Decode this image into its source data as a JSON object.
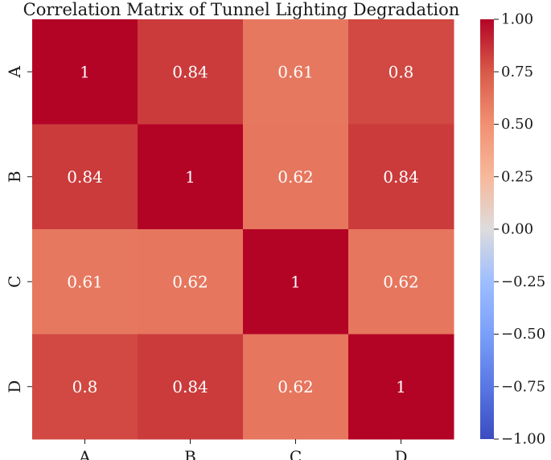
{
  "chart_data": {
    "type": "heatmap",
    "title": "Correlation Matrix of Tunnel Lighting Degradation",
    "xlabel": "",
    "ylabel": "",
    "row_labels": [
      "A",
      "B",
      "C",
      "D"
    ],
    "col_labels": [
      "A",
      "B",
      "C",
      "D"
    ],
    "values": [
      [
        1,
        0.84,
        0.61,
        0.8
      ],
      [
        0.84,
        1,
        0.62,
        0.84
      ],
      [
        0.61,
        0.62,
        1,
        0.62
      ],
      [
        0.8,
        0.84,
        0.62,
        1
      ]
    ],
    "annotations": [
      [
        "1",
        "0.84",
        "0.61",
        "0.8"
      ],
      [
        "0.84",
        "1",
        "0.62",
        "0.84"
      ],
      [
        "0.61",
        "0.62",
        "1",
        "0.62"
      ],
      [
        "0.8",
        "0.84",
        "0.62",
        "1"
      ]
    ],
    "colormap": "coolwarm",
    "vmin": -1.0,
    "vmax": 1.0,
    "colorbar_ticks": [
      "1.00",
      "0.75",
      "0.50",
      "0.25",
      "0.00",
      "−0.25",
      "−0.50",
      "−0.75",
      "−1.00"
    ],
    "colorbar_tick_values": [
      1.0,
      0.75,
      0.5,
      0.25,
      0.0,
      -0.25,
      -0.5,
      -0.75,
      -1.0
    ]
  }
}
